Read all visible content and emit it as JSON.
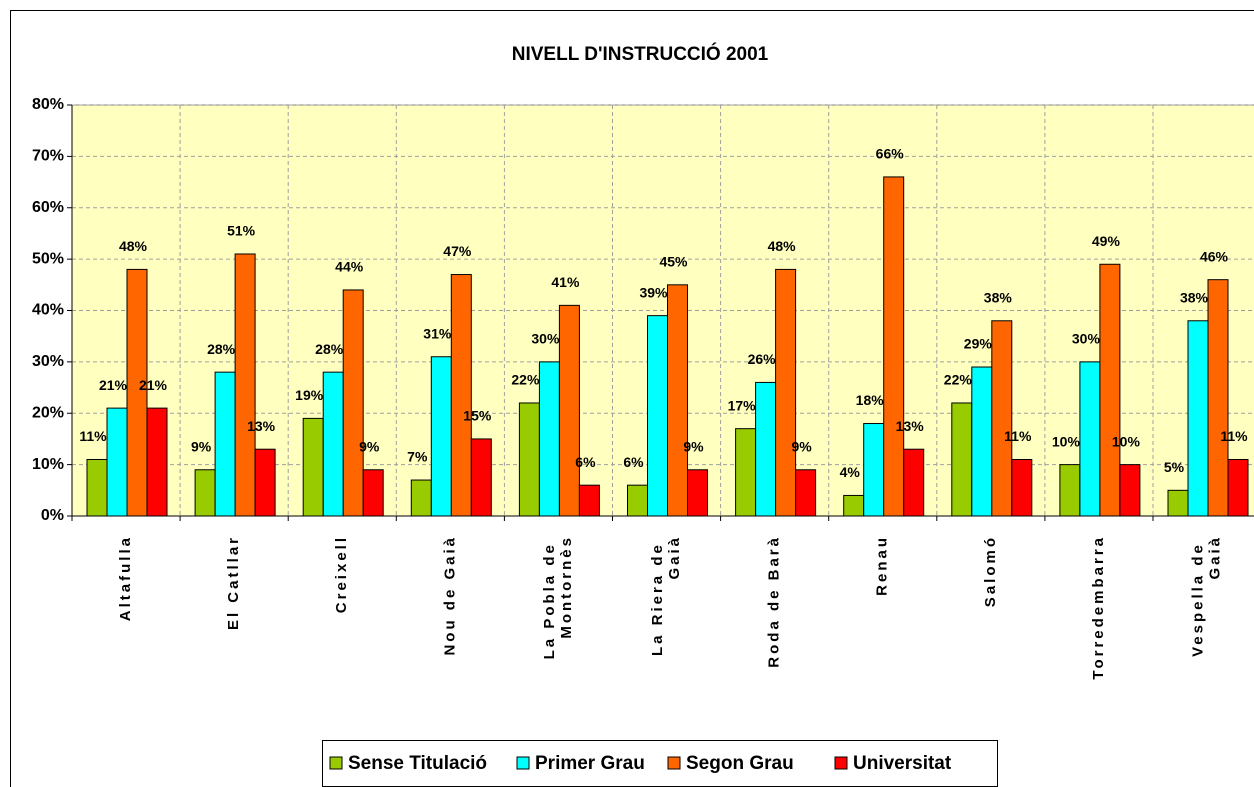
{
  "chart_data": {
    "type": "bar",
    "title": "NIVELL D'INSTRUCCIÓ 2001",
    "categories": [
      "Altafulla",
      "El Catllar",
      "Creixell",
      "Nou de Gaià",
      "La Pobla de Montornès",
      "La Riera de Gaià",
      "Roda de Barà",
      "Renau",
      "Salomó",
      "Torredembarra",
      "Vespella de Gaià"
    ],
    "series": [
      {
        "name": "Sense Titulació",
        "color": "#99cc00",
        "values": [
          11,
          9,
          19,
          7,
          22,
          6,
          17,
          4,
          22,
          10,
          5
        ],
        "value_labels": [
          "11%",
          "9%",
          "19%",
          "7%",
          "22%",
          "6%",
          "17%",
          "4%",
          "22%",
          "10%",
          "5%"
        ]
      },
      {
        "name": "Primer Grau",
        "color": "#00ffff",
        "values": [
          21,
          28,
          28,
          31,
          30,
          39,
          26,
          18,
          29,
          30,
          38
        ],
        "value_labels": [
          "21%",
          "28%",
          "28%",
          "31%",
          "30%",
          "39%",
          "26%",
          "18%",
          "29%",
          "30%",
          "38%"
        ]
      },
      {
        "name": "Segon Grau",
        "color": "#ff6600",
        "values": [
          48,
          51,
          44,
          47,
          41,
          45,
          48,
          66,
          38,
          49,
          46
        ],
        "value_labels": [
          "48%",
          "51%",
          "44%",
          "47%",
          "41%",
          "45%",
          "48%",
          "66%",
          "38%",
          "49%",
          "46%"
        ]
      },
      {
        "name": "Universitat",
        "color": "#ff0000",
        "values": [
          21,
          13,
          9,
          15,
          6,
          9,
          9,
          13,
          11,
          10,
          11
        ],
        "value_labels": [
          "21%",
          "13%",
          "9%",
          "15%",
          "6%",
          "9%",
          "9%",
          "13%",
          "11%",
          "10%",
          "11%"
        ]
      }
    ],
    "ylim": [
      0,
      80
    ],
    "yticks": [
      {
        "value": 0,
        "label": "0%"
      },
      {
        "value": 10,
        "label": "10%"
      },
      {
        "value": 20,
        "label": "20%"
      },
      {
        "value": 30,
        "label": "30%"
      },
      {
        "value": 40,
        "label": "40%"
      },
      {
        "value": 50,
        "label": "50%"
      },
      {
        "value": 60,
        "label": "60%"
      },
      {
        "value": 70,
        "label": "70%"
      },
      {
        "value": 80,
        "label": "80%"
      }
    ],
    "grid": true,
    "legend": "bottom"
  }
}
